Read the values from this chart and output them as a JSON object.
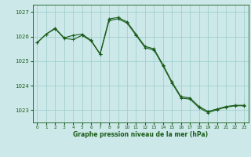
{
  "background_color": "#cce8e8",
  "grid_color": "#99cccc",
  "line_color": "#1a5c1a",
  "marker_color": "#1a5c1a",
  "xlabel": "Graphe pression niveau de la mer (hPa)",
  "xlabel_color": "#1a5c1a",
  "tick_color": "#1a5c1a",
  "ylim": [
    1022.5,
    1027.3
  ],
  "xlim": [
    -0.5,
    23.5
  ],
  "yticks": [
    1023,
    1024,
    1025,
    1026,
    1027
  ],
  "xticks": [
    0,
    1,
    2,
    3,
    4,
    5,
    6,
    7,
    8,
    9,
    10,
    11,
    12,
    13,
    14,
    15,
    16,
    17,
    18,
    19,
    20,
    21,
    22,
    23
  ],
  "series1_x": [
    0,
    1,
    2,
    3,
    4,
    5,
    6,
    7,
    8,
    9,
    10,
    11,
    12,
    13,
    14,
    15,
    16,
    17,
    18,
    19,
    20,
    21,
    22,
    23
  ],
  "series1_y": [
    1025.75,
    1026.1,
    1026.35,
    1025.95,
    1026.05,
    1026.1,
    1025.85,
    1025.3,
    1026.72,
    1026.78,
    1026.6,
    1026.1,
    1025.6,
    1025.5,
    1024.85,
    1024.15,
    1023.55,
    1023.5,
    1023.15,
    1022.95,
    1023.05,
    1023.15,
    1023.2,
    1023.2
  ],
  "series2_x": [
    0,
    1,
    2,
    3,
    4,
    5,
    6,
    7,
    8,
    9,
    10,
    11,
    12,
    13,
    14,
    15,
    16,
    17,
    18,
    19,
    20,
    21,
    22,
    23
  ],
  "series2_y": [
    1025.75,
    1026.1,
    1026.32,
    1025.93,
    1025.88,
    1026.05,
    1025.82,
    1025.28,
    1026.65,
    1026.73,
    1026.55,
    1026.05,
    1025.55,
    1025.45,
    1024.8,
    1024.1,
    1023.5,
    1023.45,
    1023.1,
    1022.9,
    1023.02,
    1023.12,
    1023.18,
    1023.18
  ]
}
